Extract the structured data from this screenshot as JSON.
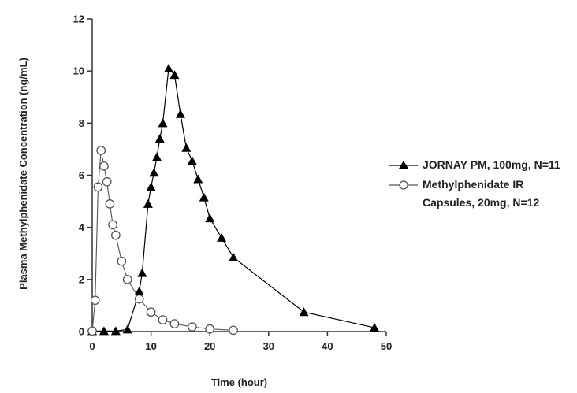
{
  "chart_data": {
    "type": "line",
    "title": "",
    "xlabel": "Time (hour)",
    "ylabel": "Plasma Methylphenidate Concentration (ng/mL)",
    "xlim": [
      0,
      50
    ],
    "ylim": [
      0,
      12
    ],
    "xticks": [
      "0",
      "10",
      "20",
      "30",
      "40",
      "50"
    ],
    "yticks": [
      "0",
      "2",
      "4",
      "6",
      "8",
      "10",
      "12"
    ],
    "grid": false,
    "legend_position": "right",
    "series": [
      {
        "name": "JORNAY PM, 100mg, N=11",
        "marker": "filled-triangle",
        "color": "#000000",
        "x": [
          0,
          2,
          4,
          6,
          8,
          8.5,
          9.5,
          10,
          10.5,
          11,
          11.5,
          12,
          13,
          14,
          15,
          16,
          17,
          18,
          19,
          20,
          22,
          24,
          36,
          48
        ],
        "y": [
          0.02,
          0.02,
          0.02,
          0.08,
          1.55,
          2.25,
          4.9,
          5.55,
          6.1,
          6.7,
          7.4,
          8.0,
          10.1,
          9.85,
          8.35,
          7.05,
          6.55,
          5.85,
          5.15,
          4.35,
          3.6,
          2.85,
          0.75,
          0.15
        ]
      },
      {
        "name": "Methylphenidate IR Capsules, 20mg, N=12",
        "legend_lines": [
          "Methylphenidate IR",
          "Capsules, 20mg, N=12"
        ],
        "marker": "open-circle",
        "color": "#555555",
        "x": [
          0,
          0.5,
          1,
          1.5,
          2,
          2.5,
          3,
          3.5,
          4,
          5,
          6,
          8,
          10,
          12,
          14,
          17,
          20,
          24
        ],
        "y": [
          0.02,
          1.2,
          5.55,
          6.95,
          6.35,
          5.75,
          4.9,
          4.1,
          3.7,
          2.7,
          2.0,
          1.25,
          0.75,
          0.45,
          0.3,
          0.18,
          0.1,
          0.05
        ]
      }
    ]
  }
}
